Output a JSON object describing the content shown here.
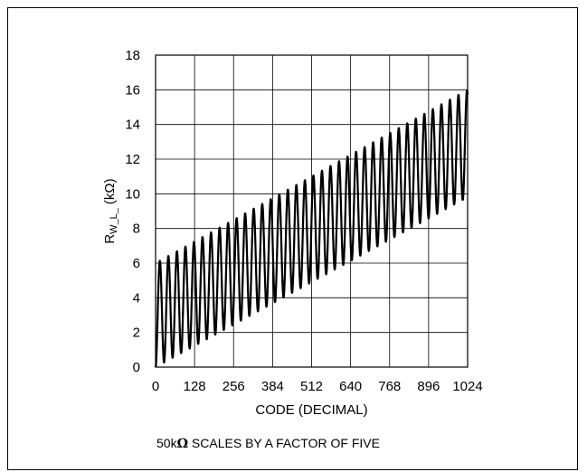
{
  "chart_data": {
    "type": "line",
    "title": "",
    "xlabel": "CODE (DECIMAL)",
    "ylabel": {
      "main": "R",
      "subscript": "W_L_",
      "unit": "(kΩ)"
    },
    "annotation": {
      "value": "50k",
      "omega": "Ω",
      "rest": " SCALES BY A FACTOR OF FIVE"
    },
    "xlim": [
      0,
      1024
    ],
    "ylim": [
      0,
      18
    ],
    "x_ticks": [
      "0",
      "128",
      "256",
      "384",
      "512",
      "640",
      "768",
      "896",
      "1024"
    ],
    "y_ticks": [
      "0",
      "2",
      "4",
      "6",
      "8",
      "10",
      "12",
      "14",
      "16",
      "18"
    ],
    "grid": true,
    "legend": "none",
    "line_color": "#000000",
    "series": [
      {
        "oscillation_period_codes": 28,
        "lower_envelope": {
          "x": [
            0,
            1024
          ],
          "y": [
            0.0,
            9.8
          ]
        },
        "upper_envelope": {
          "x": [
            0,
            1024
          ],
          "y": [
            6.0,
            16.0
          ]
        }
      }
    ]
  }
}
